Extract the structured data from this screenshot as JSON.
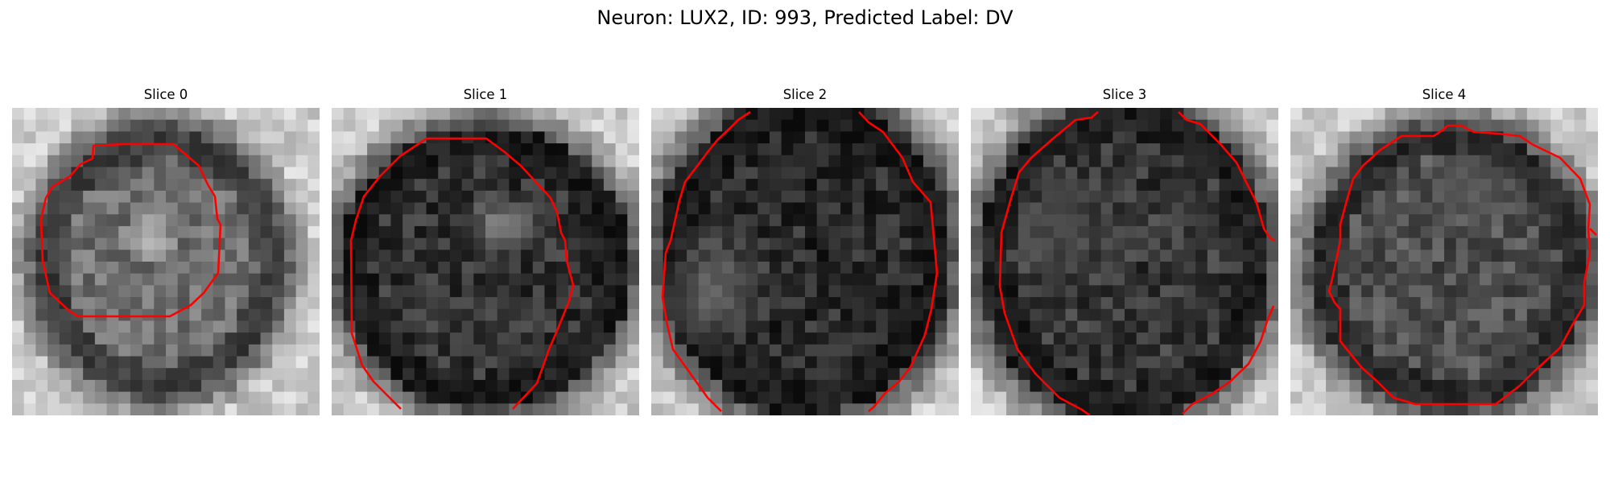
{
  "figure": {
    "title": "Neuron: LUX2, ID: 993, Predicted Label: DV"
  },
  "panels": [
    {
      "title": "Slice 0",
      "cell_brightness": 0.44,
      "highlight_brightness": 0.82
    },
    {
      "title": "Slice 1",
      "cell_brightness": 0.2,
      "highlight_brightness": 0.66
    },
    {
      "title": "Slice 2",
      "cell_brightness": 0.17,
      "highlight_brightness": 0.47
    },
    {
      "title": "Slice 3",
      "cell_brightness": 0.22,
      "highlight_brightness": 0.32
    },
    {
      "title": "Slice 4",
      "cell_brightness": 0.31,
      "highlight_brightness": 0.36
    }
  ],
  "colors": {
    "contour": "#ff0000",
    "background": "#ffffff"
  }
}
